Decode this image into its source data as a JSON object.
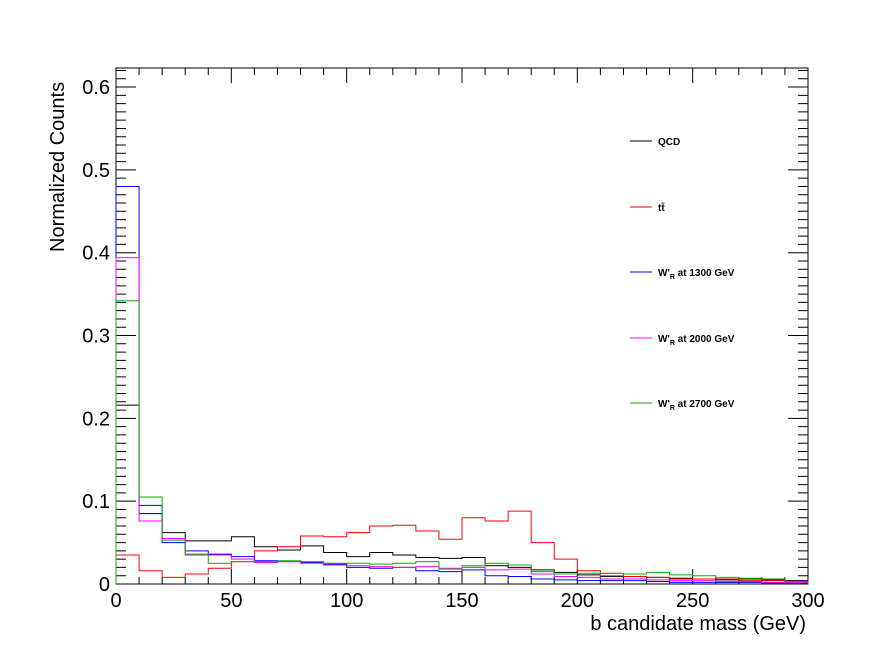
{
  "chart_data": {
    "type": "histogram",
    "xlabel": "b candidate mass (GeV)",
    "ylabel": "Normalized Counts",
    "xlim": [
      0,
      300
    ],
    "ylim": [
      0,
      0.623
    ],
    "x_ticks": [
      0,
      50,
      100,
      150,
      200,
      250,
      300
    ],
    "x_tick_labels": [
      "0",
      "50",
      "100",
      "150",
      "200",
      "250",
      "300"
    ],
    "y_ticks": [
      0,
      0.1,
      0.2,
      0.3,
      0.4,
      0.5,
      0.6
    ],
    "y_tick_labels": [
      "0",
      "0.1",
      "0.2",
      "0.3",
      "0.4",
      "0.5",
      "0.6"
    ],
    "grid": false,
    "legend_position": "top-right",
    "bin_edges": [
      0,
      10,
      20,
      30,
      40,
      50,
      60,
      70,
      80,
      90,
      100,
      110,
      120,
      130,
      140,
      150,
      160,
      170,
      180,
      190,
      200,
      210,
      220,
      230,
      240,
      250,
      260,
      270,
      280,
      290,
      300
    ],
    "series": [
      {
        "name": "QCD",
        "color": "#000000",
        "values": [
          0.216,
          0.085,
          0.062,
          0.052,
          0.052,
          0.057,
          0.045,
          0.041,
          0.046,
          0.038,
          0.033,
          0.038,
          0.035,
          0.032,
          0.031,
          0.032,
          0.022,
          0.02,
          0.017,
          0.014,
          0.011,
          0.009,
          0.009,
          0.008,
          0.007,
          0.006,
          0.005,
          0.006,
          0.005,
          0.004
        ]
      },
      {
        "name": "tt̄",
        "color": "#ff0000",
        "values": [
          0.035,
          0.016,
          0.008,
          0.012,
          0.019,
          0.027,
          0.04,
          0.045,
          0.058,
          0.057,
          0.062,
          0.07,
          0.071,
          0.064,
          0.054,
          0.08,
          0.076,
          0.088,
          0.05,
          0.03,
          0.016,
          0.013,
          0.009,
          0.008,
          0.006,
          0.006,
          0.006,
          0.004,
          0.004,
          0.003
        ]
      },
      {
        "name": "W'R at 1300 GeV",
        "color": "#0000ff",
        "values": [
          0.48,
          0.095,
          0.05,
          0.04,
          0.036,
          0.033,
          0.028,
          0.027,
          0.026,
          0.024,
          0.02,
          0.019,
          0.02,
          0.016,
          0.015,
          0.017,
          0.01,
          0.009,
          0.006,
          0.005,
          0.004,
          0.004,
          0.004,
          0.003,
          0.002,
          0.002,
          0.002,
          0.002,
          0.001,
          0.001
        ]
      },
      {
        "name": "W'R at 2000 GeV",
        "color": "#ff00ff",
        "values": [
          0.394,
          0.076,
          0.055,
          0.035,
          0.035,
          0.03,
          0.026,
          0.027,
          0.025,
          0.023,
          0.022,
          0.021,
          0.02,
          0.021,
          0.019,
          0.02,
          0.017,
          0.018,
          0.012,
          0.009,
          0.008,
          0.006,
          0.006,
          0.005,
          0.004,
          0.004,
          0.003,
          0.003,
          0.002,
          0.002
        ]
      },
      {
        "name": "W'R at 2700 GeV",
        "color": "#00b000",
        "values": [
          0.342,
          0.105,
          0.053,
          0.036,
          0.025,
          0.027,
          0.027,
          0.028,
          0.027,
          0.025,
          0.025,
          0.024,
          0.025,
          0.027,
          0.018,
          0.022,
          0.025,
          0.023,
          0.015,
          0.012,
          0.013,
          0.01,
          0.012,
          0.014,
          0.011,
          0.01,
          0.008,
          0.007,
          0.006,
          0.003
        ]
      }
    ],
    "legend": [
      {
        "main": "QCD",
        "sub": "",
        "rest": ""
      },
      {
        "main": "tt̄",
        "sub": "",
        "rest": ""
      },
      {
        "main": "W'",
        "sub": "R",
        "rest": " at 1300 GeV"
      },
      {
        "main": "W'",
        "sub": "R",
        "rest": " at 2000 GeV"
      },
      {
        "main": "W'",
        "sub": "R",
        "rest": " at 2700 GeV"
      }
    ]
  }
}
